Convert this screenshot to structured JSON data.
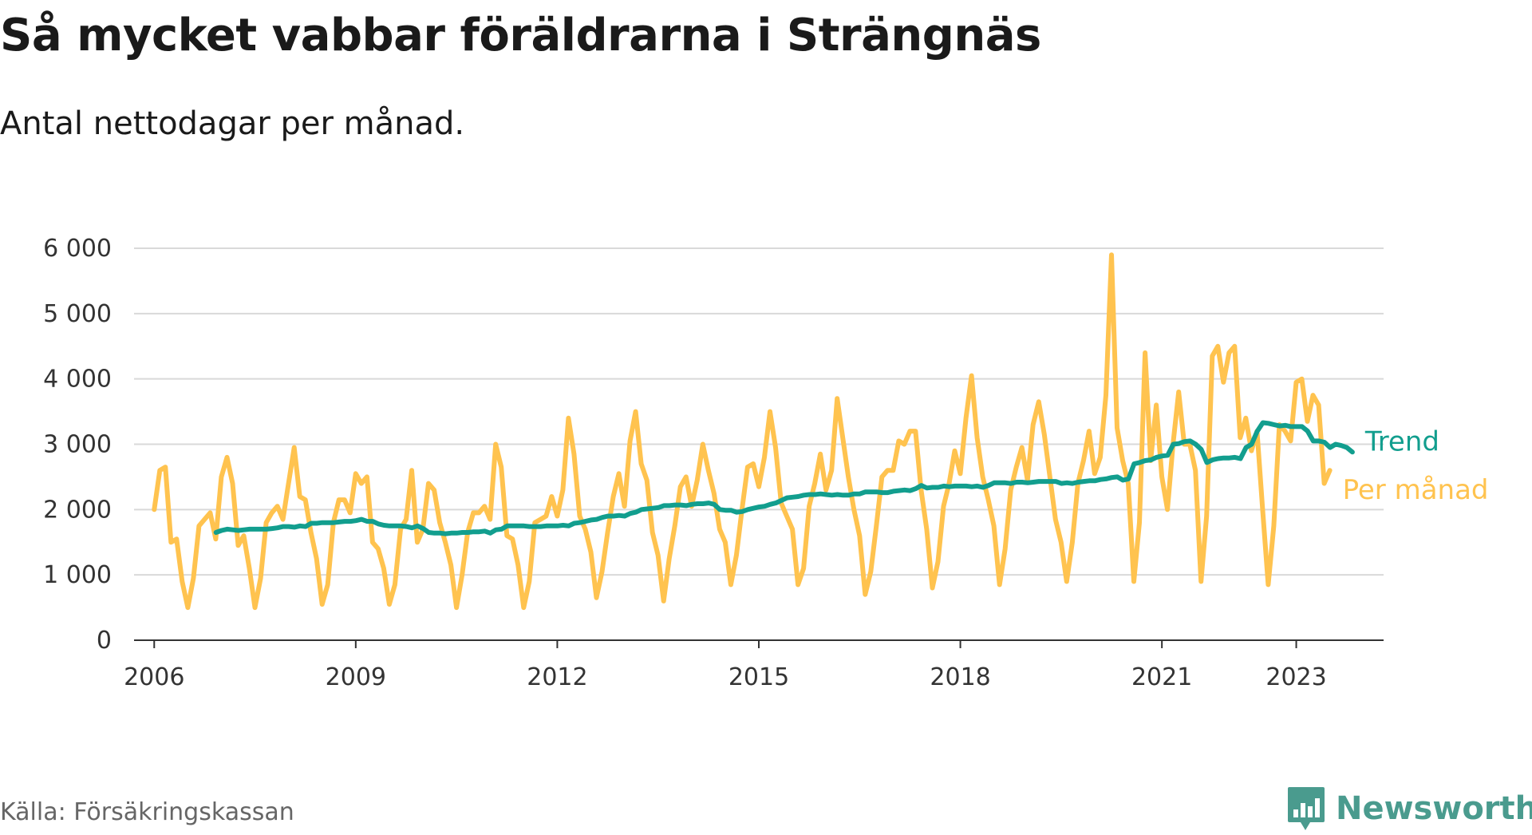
{
  "header": {
    "title": "Så mycket vabbar föräldrarna i Strängnäs",
    "subtitle": "Antal nettodagar per månad."
  },
  "footer": {
    "source": "Källa: Försäkringskassan",
    "brand": "Newsworthy"
  },
  "icons": {
    "logo": "newsworthy-logo-icon"
  },
  "colors": {
    "monthly": "#ffc34f",
    "trend": "#129e8e",
    "grid": "#d9d9d9",
    "axis": "#333333",
    "brand": "#4a9b8e"
  },
  "chart_data": {
    "type": "line",
    "title": "Så mycket vabbar föräldrarna i Strängnäs",
    "subtitle": "Antal nettodagar per månad.",
    "xlabel": "",
    "ylabel": "",
    "ylim": [
      0,
      6000
    ],
    "xlim": [
      2005.7,
      2024.3
    ],
    "grid": true,
    "legend": "end-of-line labels",
    "yticks": [
      {
        "value": 0,
        "label": "0"
      },
      {
        "value": 1000,
        "label": "1 000"
      },
      {
        "value": 2000,
        "label": "2 000"
      },
      {
        "value": 3000,
        "label": "3 000"
      },
      {
        "value": 4000,
        "label": "4 000"
      },
      {
        "value": 5000,
        "label": "5 000"
      },
      {
        "value": 6000,
        "label": "6 000"
      }
    ],
    "xticks": [
      {
        "value": 2006,
        "label": "2006"
      },
      {
        "value": 2009,
        "label": "2009"
      },
      {
        "value": 2012,
        "label": "2012"
      },
      {
        "value": 2015,
        "label": "2015"
      },
      {
        "value": 2018,
        "label": "2018"
      },
      {
        "value": 2021,
        "label": "2021"
      },
      {
        "value": 2023,
        "label": "2023"
      }
    ],
    "series": [
      {
        "name": "Per månad",
        "start": 2006,
        "step": 0.08333,
        "values": [
          2000,
          2600,
          2650,
          1500,
          1550,
          900,
          500,
          950,
          1750,
          1850,
          1950,
          1550,
          2500,
          2800,
          2400,
          1450,
          1600,
          1100,
          500,
          950,
          1800,
          1950,
          2050,
          1850,
          2400,
          2950,
          2200,
          2150,
          1650,
          1250,
          550,
          850,
          1800,
          2150,
          2150,
          1950,
          2550,
          2400,
          2500,
          1500,
          1400,
          1100,
          550,
          850,
          1700,
          1850,
          2600,
          1500,
          1700,
          2400,
          2300,
          1800,
          1500,
          1150,
          500,
          1000,
          1650,
          1950,
          1950,
          2050,
          1850,
          3000,
          2650,
          1600,
          1550,
          1150,
          500,
          900,
          1800,
          1850,
          1900,
          2200,
          1900,
          2300,
          3400,
          2850,
          1900,
          1700,
          1350,
          650,
          1050,
          1650,
          2200,
          2550,
          2050,
          3050,
          3500,
          2700,
          2450,
          1650,
          1300,
          600,
          1250,
          1750,
          2350,
          2500,
          2050,
          2450,
          3000,
          2600,
          2250,
          1700,
          1500,
          850,
          1300,
          2000,
          2650,
          2700,
          2350,
          2800,
          3500,
          2950,
          2100,
          1900,
          1700,
          850,
          1100,
          2050,
          2400,
          2850,
          2300,
          2600,
          3700,
          3100,
          2500,
          2000,
          1600,
          700,
          1050,
          1750,
          2500,
          2600,
          2600,
          3050,
          3000,
          3200,
          3200,
          2300,
          1700,
          800,
          1200,
          2050,
          2400,
          2900,
          2550,
          3400,
          4050,
          3100,
          2500,
          2150,
          1750,
          850,
          1400,
          2300,
          2650,
          2950,
          2450,
          3300,
          3650,
          3150,
          2500,
          1850,
          1500,
          900,
          1500,
          2400,
          2750,
          3200,
          2550,
          2800,
          3750,
          5900,
          3250,
          2750,
          2400,
          900,
          1800,
          4400,
          2750,
          3600,
          2500,
          2000,
          3000,
          3800,
          3000,
          3000,
          2600,
          900,
          1900,
          4350,
          4500,
          3950,
          4400,
          4500,
          3100,
          3400,
          2900,
          3200,
          2000,
          850,
          1750,
          3300,
          3200,
          3050,
          3950,
          4000,
          3350,
          3750,
          3600,
          2400,
          2600
        ]
      },
      {
        "name": "Trend",
        "start": 2006.92,
        "step": 0.08333,
        "values": [
          1650,
          1680,
          1700,
          1690,
          1680,
          1690,
          1700,
          1700,
          1700,
          1700,
          1710,
          1720,
          1740,
          1740,
          1730,
          1750,
          1740,
          1790,
          1790,
          1800,
          1800,
          1800,
          1810,
          1820,
          1820,
          1830,
          1850,
          1820,
          1820,
          1780,
          1760,
          1750,
          1750,
          1750,
          1740,
          1720,
          1750,
          1710,
          1650,
          1640,
          1640,
          1630,
          1640,
          1640,
          1650,
          1650,
          1660,
          1660,
          1670,
          1640,
          1690,
          1700,
          1750,
          1750,
          1750,
          1750,
          1740,
          1740,
          1740,
          1750,
          1750,
          1750,
          1760,
          1750,
          1790,
          1800,
          1820,
          1840,
          1850,
          1880,
          1900,
          1900,
          1910,
          1900,
          1940,
          1960,
          2000,
          2010,
          2020,
          2030,
          2060,
          2060,
          2070,
          2070,
          2060,
          2080,
          2090,
          2090,
          2100,
          2080,
          2000,
          1990,
          1990,
          1960,
          1970,
          2000,
          2020,
          2040,
          2050,
          2080,
          2100,
          2140,
          2180,
          2190,
          2200,
          2220,
          2230,
          2230,
          2240,
          2230,
          2220,
          2230,
          2220,
          2220,
          2240,
          2240,
          2270,
          2270,
          2270,
          2260,
          2260,
          2280,
          2290,
          2300,
          2290,
          2320,
          2370,
          2330,
          2340,
          2340,
          2360,
          2350,
          2360,
          2360,
          2360,
          2350,
          2360,
          2340,
          2370,
          2410,
          2410,
          2410,
          2400,
          2420,
          2420,
          2410,
          2420,
          2430,
          2430,
          2430,
          2430,
          2400,
          2410,
          2400,
          2420,
          2430,
          2440,
          2440,
          2460,
          2470,
          2490,
          2500,
          2450,
          2470,
          2700,
          2720,
          2750,
          2760,
          2800,
          2820,
          2830,
          3000,
          3010,
          3040,
          3050,
          3000,
          2920,
          2720,
          2760,
          2780,
          2790,
          2790,
          2800,
          2780,
          2950,
          3000,
          3200,
          3330,
          3320,
          3300,
          3280,
          3290,
          3270,
          3270,
          3270,
          3200,
          3050,
          3050,
          3030,
          2950,
          3000,
          2980,
          2950,
          2880
        ]
      }
    ]
  }
}
